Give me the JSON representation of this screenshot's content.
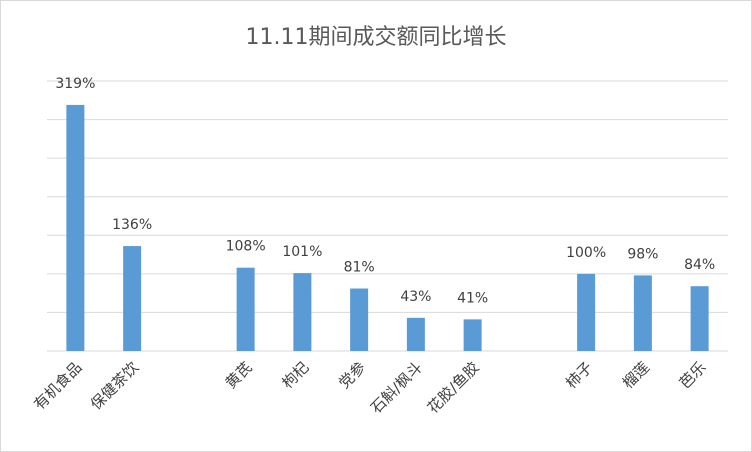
{
  "chart_data": {
    "type": "bar",
    "title": "11.11期间成交额同比增长",
    "categories": [
      "有机食品",
      "保健茶饮",
      null,
      "黄芪",
      "枸杞",
      "党参",
      "石斛/枫斗",
      "花胶/鱼胶",
      null,
      "柿子",
      "榴莲",
      "芭乐"
    ],
    "values": [
      319,
      136,
      null,
      108,
      101,
      81,
      43,
      41,
      null,
      100,
      98,
      84
    ],
    "value_labels": [
      "319%",
      "136%",
      null,
      "108%",
      "101%",
      "81%",
      "43%",
      "41%",
      null,
      "100%",
      "98%",
      "84%"
    ],
    "color": "#5b9bd5",
    "ylim": [
      0,
      350
    ],
    "yticks": [
      0,
      50,
      100,
      150,
      200,
      250,
      300,
      350
    ],
    "grid": true
  }
}
